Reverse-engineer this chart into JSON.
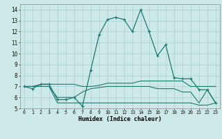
{
  "xlabel": "Humidex (Indice chaleur)",
  "x": [
    0,
    1,
    2,
    3,
    4,
    5,
    6,
    7,
    8,
    9,
    10,
    11,
    12,
    13,
    14,
    15,
    16,
    17,
    18,
    19,
    20,
    21,
    22,
    23
  ],
  "line1": [
    7.0,
    6.8,
    7.2,
    7.2,
    5.8,
    5.8,
    6.0,
    5.2,
    8.5,
    11.7,
    13.1,
    13.3,
    13.1,
    12.0,
    14.0,
    12.0,
    9.8,
    10.8,
    7.8,
    7.7,
    7.7,
    6.7,
    6.7,
    5.5
  ],
  "line2": [
    7.0,
    7.0,
    7.2,
    7.2,
    7.2,
    7.2,
    7.2,
    7.0,
    7.0,
    7.1,
    7.3,
    7.3,
    7.3,
    7.3,
    7.5,
    7.5,
    7.5,
    7.5,
    7.5,
    7.5,
    7.0,
    7.0,
    7.0,
    7.0
  ],
  "line3": [
    7.0,
    7.0,
    7.0,
    7.0,
    6.0,
    6.0,
    6.0,
    6.5,
    6.8,
    6.9,
    7.0,
    7.0,
    7.0,
    7.0,
    7.0,
    7.0,
    6.8,
    6.8,
    6.8,
    6.5,
    6.5,
    5.5,
    6.7,
    5.5
  ],
  "line4": [
    7.0,
    7.0,
    7.0,
    7.0,
    5.5,
    5.5,
    5.5,
    5.5,
    5.5,
    5.5,
    5.5,
    5.5,
    5.5,
    5.5,
    5.5,
    5.5,
    5.5,
    5.5,
    5.5,
    5.5,
    5.5,
    5.3,
    5.3,
    5.5
  ],
  "color": "#1a7a6e",
  "bg_color": "#cde8e8",
  "grid_color": "#aacfcf",
  "ylim": [
    5,
    14.5
  ],
  "xlim": [
    -0.5,
    23.5
  ]
}
